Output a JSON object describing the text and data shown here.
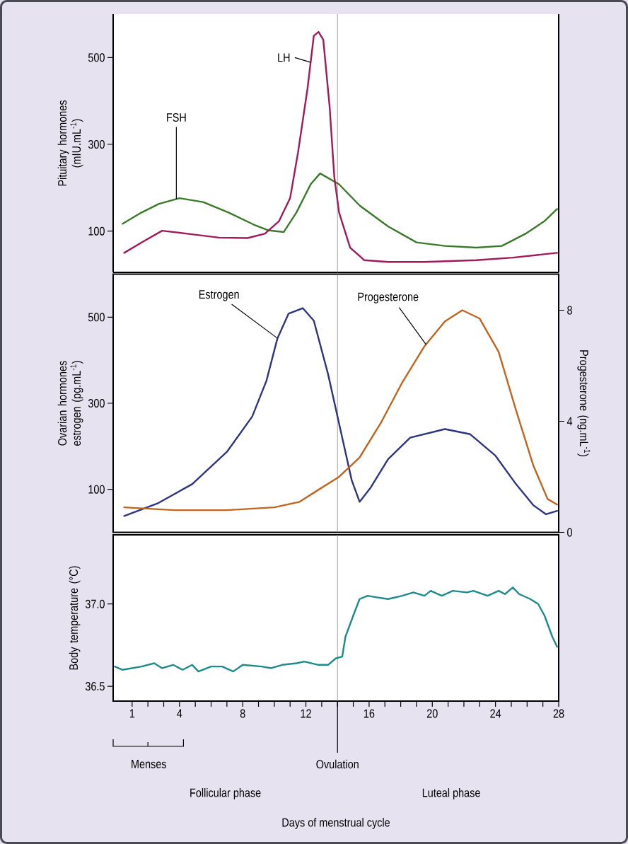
{
  "chart_data": [
    {
      "type": "line",
      "ylabel": "Pituitary hormones (mIU.mL$^{-1}$)",
      "xlim": [
        -0.2,
        28
      ],
      "ylim": [
        5,
        600
      ],
      "yticks": [
        100,
        300,
        500
      ],
      "tick_labels": "y",
      "series": [
        {
          "name": "FSH",
          "color": "#3b7a2a",
          "x": [
            0.4,
            1.6,
            2.7,
            4.0,
            5.5,
            7.1,
            8.7,
            9.6,
            10.6,
            11.4,
            12.3,
            12.9,
            14.1,
            15.4,
            17.2,
            19.0,
            20.8,
            22.8,
            24.4,
            25.9,
            27.1,
            27.9
          ],
          "values": [
            117,
            143,
            163,
            176,
            167,
            143,
            115,
            102,
            98,
            143,
            208,
            233,
            208,
            159,
            111,
            74,
            66,
            62,
            66,
            94,
            123,
            151
          ]
        },
        {
          "name": "LH",
          "color": "#a01a5a",
          "x": [
            0.5,
            1.6,
            2.9,
            4.5,
            6.5,
            8.3,
            9.4,
            10.3,
            11.0,
            11.5,
            12.1,
            12.5,
            12.8,
            13.1,
            13.5,
            13.8,
            14.1,
            14.8,
            15.7,
            17.2,
            19.5,
            22.8,
            25.1,
            27.9
          ],
          "values": [
            50,
            74,
            101,
            94,
            85,
            84,
            94,
            123,
            176,
            281,
            428,
            550,
            559,
            541,
            387,
            224,
            143,
            62,
            33,
            29,
            29,
            33,
            39,
            50
          ]
        }
      ],
      "ref_lines": [
        {
          "axis": "x",
          "value": 14,
          "color": "#8a8a8a"
        }
      ]
    },
    {
      "type": "line",
      "ylabel": "Ovarian hormones estrogen (pg.mL$^{-1}$)",
      "y2label": "Progesterone (ng.mL$^{-1}$)",
      "xlim": [
        -0.2,
        28
      ],
      "ylim": [
        0,
        600
      ],
      "yticks": [
        100,
        300,
        500
      ],
      "y2lim": [
        0,
        9.3
      ],
      "y2ticks": [
        0,
        4,
        8
      ],
      "tick_labels": "y",
      "series": [
        {
          "name": "Estrogen",
          "color": "#2e3580",
          "x": [
            0.5,
            2.6,
            4.8,
            7.0,
            8.6,
            9.5,
            10.2,
            10.9,
            11.8,
            12.5,
            13.4,
            14.3,
            14.9,
            15.4,
            16.1,
            17.2,
            18.6,
            20.8,
            22.4,
            24.0,
            25.3,
            26.4,
            27.2,
            27.9
          ],
          "values": [
            38,
            67,
            112,
            187,
            269,
            352,
            451,
            508,
            521,
            492,
            368,
            220,
            121,
            71,
            104,
            170,
            220,
            240,
            228,
            178,
            112,
            63,
            42,
            50
          ]
        },
        {
          "name": "Progesterone",
          "color": "#c0641e",
          "axis": "y2",
          "x": [
            0.5,
            3.7,
            7.0,
            10.0,
            11.6,
            12.7,
            14.1,
            15.4,
            16.8,
            18.1,
            19.5,
            20.8,
            21.9,
            23.0,
            24.2,
            25.3,
            26.4,
            27.3,
            27.9
          ],
          "values": [
            0.9,
            0.8,
            0.8,
            0.9,
            1.1,
            1.5,
            2.0,
            2.7,
            4.0,
            5.4,
            6.7,
            7.6,
            8.0,
            7.7,
            6.5,
            4.4,
            2.4,
            1.2,
            1.0
          ]
        }
      ],
      "ref_lines": [
        {
          "axis": "x",
          "value": 14,
          "color": "#8a8a8a"
        }
      ]
    },
    {
      "type": "line",
      "ylabel": "Body temperature (°C)",
      "xlabel": "Days of menstrual cycle",
      "xlim": [
        -0.2,
        28
      ],
      "ylim": [
        36.41,
        37.42
      ],
      "yticks": [
        36.5,
        {
          "value": 37,
          "label": "37.0"
        }
      ],
      "xticks": [
        1,
        {
          "value": 2,
          "label": null
        },
        {
          "value": 3,
          "label": null
        },
        4,
        {
          "value": 5,
          "label": null
        },
        {
          "value": 6,
          "label": null
        },
        {
          "value": 7,
          "label": null
        },
        8,
        {
          "value": 9,
          "label": null
        },
        {
          "value": 10,
          "label": null
        },
        {
          "value": 11,
          "label": null
        },
        12,
        {
          "value": 13,
          "label": null
        },
        {
          "value": 14,
          "label": null
        },
        {
          "value": 15,
          "label": null
        },
        16,
        {
          "value": 17,
          "label": null
        },
        {
          "value": 18,
          "label": null
        },
        {
          "value": 19,
          "label": null
        },
        20,
        {
          "value": 21,
          "label": null
        },
        {
          "value": 22,
          "label": null
        },
        {
          "value": 23,
          "label": null
        },
        24,
        {
          "value": 25,
          "label": null
        },
        {
          "value": 26,
          "label": null
        },
        {
          "value": 27,
          "label": null
        },
        28
      ],
      "color": "#1f8a8a",
      "x": [
        -0.1,
        0.4,
        1.6,
        2.4,
        2.9,
        3.6,
        4.2,
        4.8,
        5.2,
        6.0,
        6.7,
        7.4,
        8.0,
        9.2,
        9.8,
        10.5,
        11.4,
        11.9,
        12.8,
        13.4,
        13.9,
        14.3,
        14.5,
        15.0,
        15.4,
        15.9,
        16.5,
        17.2,
        18.1,
        18.8,
        19.5,
        19.9,
        20.6,
        21.3,
        22.2,
        22.6,
        23.5,
        24.2,
        24.6,
        25.1,
        25.5,
        26.2,
        26.7,
        27.1,
        27.6,
        27.9
      ],
      "values": [
        36.62,
        36.6,
        36.62,
        36.64,
        36.61,
        36.63,
        36.6,
        36.63,
        36.59,
        36.62,
        36.62,
        36.59,
        36.63,
        36.62,
        36.61,
        36.63,
        36.64,
        36.65,
        36.63,
        36.63,
        36.67,
        36.68,
        36.8,
        36.93,
        37.03,
        37.05,
        37.04,
        37.03,
        37.05,
        37.07,
        37.05,
        37.08,
        37.05,
        37.08,
        37.07,
        37.08,
        37.05,
        37.08,
        37.06,
        37.1,
        37.06,
        37.03,
        37.0,
        36.93,
        36.8,
        36.74
      ],
      "ref_lines": [
        {
          "axis": "x",
          "value": 14,
          "color": "#8a8a8a",
          "label": "Ovulation"
        }
      ],
      "annotations": [
        "Menses",
        "Follicular phase",
        "Luteal phase"
      ]
    }
  ]
}
